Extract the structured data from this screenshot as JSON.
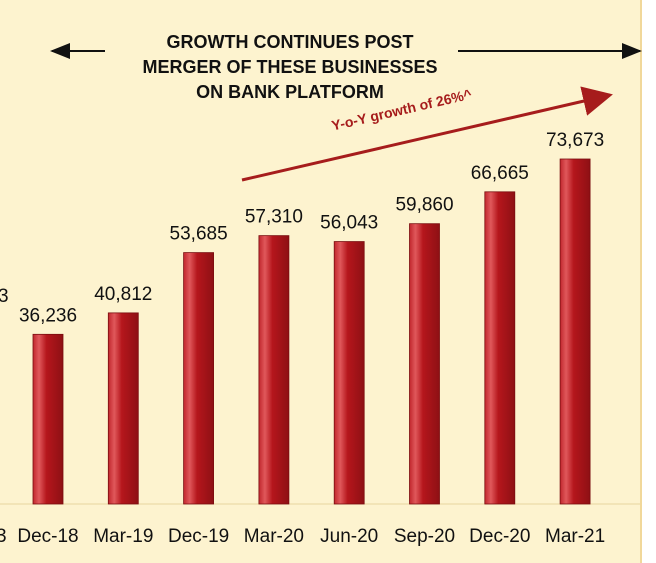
{
  "headline": {
    "line1": "GROWTH CONTINUES POST",
    "line2": "MERGER OF THESE BUSINESSES",
    "line3": "ON BANK PLATFORM"
  },
  "growth_annotation": "Y-o-Y growth of 26%^",
  "colors": {
    "bar": "#b5161c",
    "bar_highlight": "#d43a3e",
    "panel": "#fdf3cf",
    "arrow": "#a61c1c"
  },
  "chart_data": {
    "type": "bar",
    "categories": [
      "Dec-18",
      "Mar-19",
      "Dec-19",
      "Mar-20",
      "Jun-20",
      "Sep-20",
      "Dec-20",
      "Mar-21"
    ],
    "values": [
      36236,
      40812,
      53685,
      57310,
      56043,
      59860,
      66665,
      73673
    ],
    "value_labels": [
      "36,236",
      "40,812",
      "53,685",
      "57,310",
      "56,043",
      "59,860",
      "66,665",
      "73,673"
    ],
    "title": "",
    "xlabel": "",
    "ylabel": "",
    "ylim": [
      0,
      73673
    ],
    "grid": false,
    "legend": "none"
  }
}
